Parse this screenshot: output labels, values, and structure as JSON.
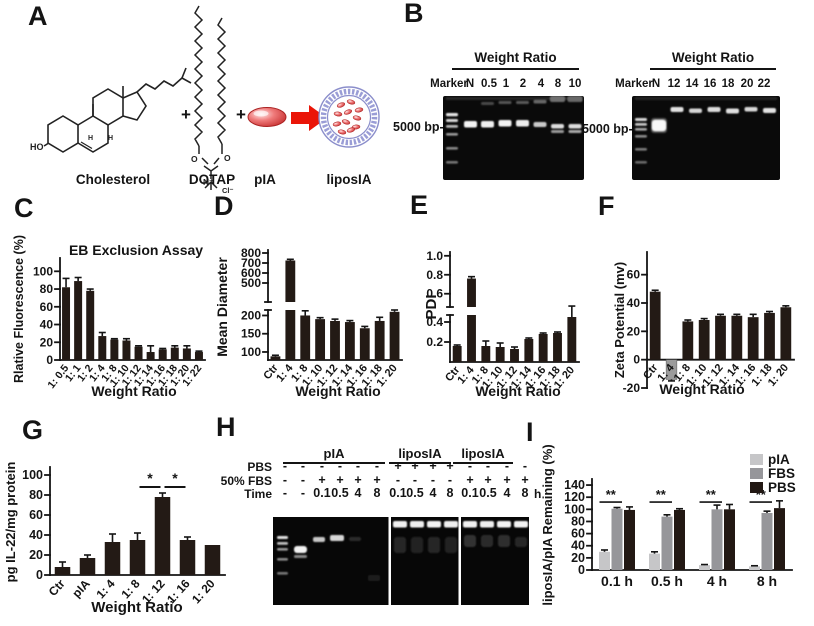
{
  "figure": {
    "panels": {
      "a": "A",
      "b": "B",
      "c": "C",
      "d": "D",
      "e": "E",
      "f": "F",
      "g": "G",
      "h": "H",
      "i": "I"
    }
  },
  "panel_a": {
    "molecule_labels": [
      "Cholesterol",
      "DOTAP",
      "pIA",
      "liposIA"
    ],
    "plus_sign": "+",
    "ho": "HO",
    "o": "O",
    "n_plus": "N⁺",
    "cl_minus": "Cl⁻",
    "h": "H"
  },
  "panel_b": {
    "left_gel": {
      "header": "Weight Ratio",
      "lanes": [
        "Marker",
        "N",
        "0.5",
        "1",
        "2",
        "4",
        "8",
        "10"
      ],
      "size_label": "5000 bp-"
    },
    "right_gel": {
      "header": "Weight Ratio",
      "lanes": [
        "Marker",
        "N",
        "12",
        "14",
        "16",
        "18",
        "20",
        "22"
      ],
      "size_label": "5000 bp-"
    }
  },
  "panel_h": {
    "group_labels": [
      "pIA",
      "liposIA",
      "liposIA"
    ],
    "rows": [
      {
        "label": "PBS",
        "values": [
          "-",
          "-",
          "-",
          "-",
          "-",
          "-",
          "+",
          "+",
          "+",
          "+",
          "-",
          "-",
          "-",
          "-"
        ],
        "suffix": ""
      },
      {
        "label": "50% FBS",
        "values": [
          "-",
          "-",
          "+",
          "+",
          "+",
          "+",
          "-",
          "-",
          "-",
          "-",
          "+",
          "+",
          "+",
          "+"
        ],
        "suffix": ""
      },
      {
        "label": "Time",
        "values": [
          "-",
          "-",
          "0.1",
          "0.5",
          "4",
          "8",
          "0.1",
          "0.5",
          "4",
          "8",
          "0.1",
          "0.5",
          "4",
          "8"
        ],
        "suffix": "h"
      }
    ]
  },
  "chart_data": [
    {
      "panel": "C",
      "type": "bar",
      "title": "EB Exclusion Assay",
      "ylabel": "Rlative Fluorescence (%)",
      "xlabel": "Weight Ratio",
      "categories": [
        "1: 0.5",
        "1: 1",
        "1: 2",
        "1: 4",
        "1: 8",
        "1: 10",
        "1: 12",
        "1: 14",
        "1: 16",
        "1: 18",
        "1: 20",
        "1: 22"
      ],
      "values": [
        82,
        89,
        78,
        27,
        23,
        22,
        15,
        9,
        12,
        14,
        13,
        9
      ],
      "errors": [
        10,
        4,
        2,
        4,
        1,
        2,
        1,
        7,
        1,
        2,
        3,
        1
      ],
      "yticks": [
        0,
        20,
        40,
        60,
        80,
        100
      ],
      "ylim": [
        0,
        115
      ]
    },
    {
      "panel": "D",
      "type": "bar",
      "ylabel": "Mean Diameter",
      "xlabel": "Weight Ratio",
      "categories": [
        "Ctr",
        "1: 4",
        "1: 8",
        "1: 10",
        "1: 12",
        "1: 14",
        "1: 16",
        "1: 18",
        "1: 20"
      ],
      "values": [
        88,
        725,
        200,
        190,
        185,
        182,
        165,
        185,
        210
      ],
      "errors": [
        3,
        12,
        22,
        4,
        5,
        4,
        5,
        10,
        5
      ],
      "ybreak": {
        "lower_lim": [
          78,
          215
        ],
        "lower_ticks": [
          100,
          150,
          200
        ],
        "upper_lim": [
          310,
          830
        ],
        "upper_ticks": [
          500,
          600,
          700,
          800
        ]
      }
    },
    {
      "panel": "E",
      "type": "bar",
      "ylabel": "PDI",
      "xlabel": "Weight Ratio",
      "categories": [
        "Ctr",
        "1: 4",
        "1: 8",
        "1: 10",
        "1: 12",
        "1: 14",
        "1: 16",
        "1: 18",
        "1: 20"
      ],
      "values": [
        0.16,
        0.76,
        0.16,
        0.15,
        0.13,
        0.23,
        0.28,
        0.29,
        0.45
      ],
      "errors": [
        0.01,
        0.02,
        0.05,
        0.04,
        0.02,
        0.01,
        0.01,
        0.01,
        0.02
      ],
      "ybreak": {
        "lower_lim": [
          0,
          0.47
        ],
        "lower_ticks": [
          0.2,
          0.4
        ],
        "lower_tick_labels": [
          "0.2",
          "0.4"
        ],
        "upper_lim": [
          0.46,
          1.04
        ],
        "upper_ticks": [
          0.6,
          0.8,
          1.0
        ],
        "upper_tick_labels": [
          "0.6",
          "0.8",
          "1.0"
        ]
      }
    },
    {
      "panel": "F",
      "type": "bar",
      "ylabel": "Zeta Potential (mv)",
      "xlabel": "Weight Ratio",
      "categories": [
        "Ctr",
        "1: 4",
        "1: 8",
        "1: 10",
        "1: 12",
        "1: 14",
        "1: 16",
        "1: 18",
        "1: 20"
      ],
      "values": [
        48,
        -14,
        27,
        28,
        31,
        31,
        30,
        33,
        37
      ],
      "errors": [
        1,
        1,
        1,
        1,
        1,
        1,
        2,
        1,
        1
      ],
      "yticks": [
        -20,
        0,
        20,
        40,
        60
      ],
      "ylim": [
        -20,
        76
      ],
      "bar_colors": {
        "1": "#9b9b9b"
      }
    },
    {
      "panel": "G",
      "type": "bar",
      "ylabel": "pg IL-22/mg protein",
      "xlabel": "Weight Ratio",
      "categories": [
        "Ctr",
        "pIA",
        "1: 4",
        "1: 8",
        "1: 12",
        "1: 16",
        "1: 20"
      ],
      "values": [
        8,
        17,
        33,
        35,
        78,
        35,
        30
      ],
      "errors": [
        5,
        3,
        8,
        7,
        4,
        3,
        0
      ],
      "yticks": [
        0,
        20,
        40,
        60,
        80,
        100
      ],
      "ylim": [
        0,
        108
      ],
      "sig": [
        {
          "from": 3,
          "to": 4,
          "label": "*",
          "at": 88
        },
        {
          "from": 4,
          "to": 5,
          "label": "*",
          "at": 88
        }
      ]
    },
    {
      "panel": "I",
      "type": "groupbar",
      "ylabel": "liposIA/pIA Remaining (%)",
      "groups": [
        "0.1 h",
        "0.5 h",
        "4 h",
        "8 h"
      ],
      "series": [
        {
          "name": "pIA",
          "color": "#c6c6c8",
          "values": [
            30,
            27,
            8,
            6
          ],
          "errors": [
            3,
            3,
            1,
            1
          ]
        },
        {
          "name": "FBS",
          "color": "#96969a",
          "values": [
            101,
            88,
            100,
            94
          ],
          "errors": [
            2,
            3,
            7,
            3
          ]
        },
        {
          "name": "PBS",
          "color": "#221813",
          "values": [
            99,
            99,
            100,
            102
          ],
          "errors": [
            5,
            2,
            8,
            12
          ]
        }
      ],
      "yticks": [
        0,
        20,
        40,
        60,
        80,
        100,
        120,
        140
      ],
      "ylim": [
        0,
        150
      ],
      "sig_groups": {
        "label": "**",
        "at": 112
      },
      "legend": true
    }
  ]
}
